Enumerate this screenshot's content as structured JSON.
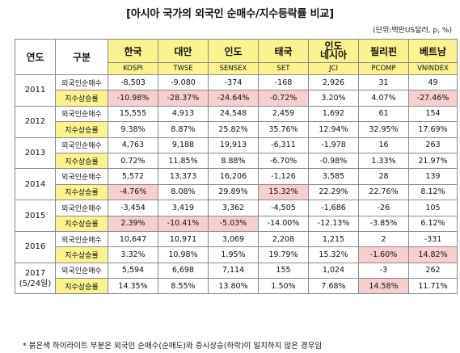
{
  "title": "[아시아 국가의 외국인 순매수/지수등락률 비교]",
  "unit": "(단위:백만US달러, p, %)",
  "header": {
    "year": "연도",
    "category": "구분",
    "markets": [
      {
        "country": "한국",
        "index": "KOSPI"
      },
      {
        "country": "대만",
        "index": "TWSE"
      },
      {
        "country": "인도",
        "index": "SENSEX"
      },
      {
        "country": "태국",
        "index": "SET"
      },
      {
        "country_line1": "인도",
        "country_line2": "네시아",
        "index": "JCI"
      },
      {
        "country": "필리핀",
        "index": "PCOMP"
      },
      {
        "country": "베트남",
        "index": "VNINDEX"
      }
    ]
  },
  "row_labels": {
    "net_buy": "외국인순매수",
    "index_change": "지수상승률"
  },
  "years": [
    {
      "year": "2011",
      "net_buy": [
        "-8,503",
        "-9,080",
        "-374",
        "-168",
        "2,926",
        "31",
        "49"
      ],
      "index_change": [
        "-10.98%",
        "-28.37%",
        "-24.64%",
        "-0.72%",
        "3.20%",
        "4.07%",
        "-27.46%"
      ]
    },
    {
      "year": "2012",
      "net_buy": [
        "15,555",
        "4,913",
        "24,548",
        "2,459",
        "1,692",
        "61",
        "154"
      ],
      "index_change": [
        "9.38%",
        "8.87%",
        "25.82%",
        "35.76%",
        "12.94%",
        "32.95%",
        "17.69%"
      ]
    },
    {
      "year": "2013",
      "net_buy": [
        "4,763",
        "9,188",
        "19,913",
        "-6,311",
        "-1,978",
        "16",
        "263"
      ],
      "index_change": [
        "0.72%",
        "11.85%",
        "8.88%",
        "-6.70%",
        "-0.98%",
        "1.33%",
        "21.97%"
      ]
    },
    {
      "year": "2014",
      "net_buy": [
        "5,572",
        "13,373",
        "16,206",
        "-1,126",
        "3,585",
        "28",
        "139"
      ],
      "index_change": [
        "-4.76%",
        "8.08%",
        "29.89%",
        "15.32%",
        "22.29%",
        "22.76%",
        "8.12%"
      ]
    },
    {
      "year": "2015",
      "net_buy": [
        "-3,454",
        "3,419",
        "3,362",
        "-4,505",
        "-1,686",
        "-26",
        "105"
      ],
      "index_change": [
        "2.39%",
        "-10.41%",
        "-5.03%",
        "-14.00%",
        "-12.13%",
        "-3.85%",
        "6.12%"
      ]
    },
    {
      "year": "2016",
      "net_buy": [
        "10,647",
        "10,971",
        "3,069",
        "2,208",
        "1,215",
        "2",
        "-331"
      ],
      "index_change": [
        "3.32%",
        "10.98%",
        "1.95%",
        "19.79%",
        "15.32%",
        "-1.60%",
        "14.82%"
      ]
    },
    {
      "year": "2017",
      "year_note": "(5/24일)",
      "net_buy": [
        "5,594",
        "6,698",
        "7,114",
        "155",
        "1,024",
        "-3",
        "262"
      ],
      "index_change": [
        "14.35%",
        "8.55%",
        "13.80%",
        "1.50%",
        "7.68%",
        "14.58%",
        "11.71%"
      ]
    }
  ],
  "highlight_color": "#f8cfcf",
  "header_color": "#fbf38f",
  "note": "* 붉은색 하이라이트 부분은 외국인 순매수(순매도)와 증시상승(하락)이 일치하지 않은 경우임"
}
